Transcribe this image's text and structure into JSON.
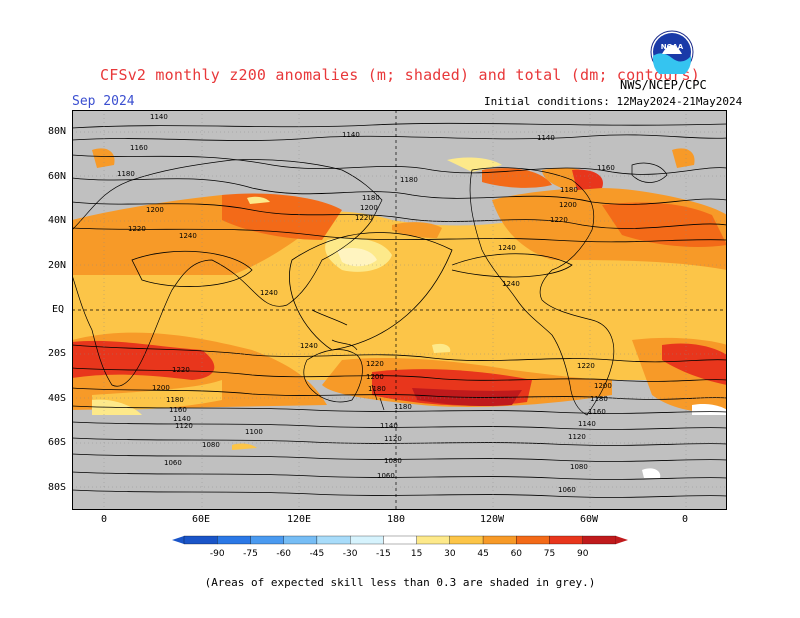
{
  "title": "CFSv2 monthly z200 anomalies (m; shaded) and total (dm; contours)",
  "month_label": "Sep 2024",
  "init_conditions": "Initial conditions: 12May2024-21May2024",
  "agency": "NWS/NCEP/CPC",
  "logo_text": "NOAA",
  "footnote": "(Areas of expected skill less than 0.3 are shaded in grey.)",
  "lat_labels": [
    "80N",
    "60N",
    "40N",
    "20N",
    "EQ",
    "20S",
    "40S",
    "60S",
    "80S"
  ],
  "lon_labels": [
    "0",
    "60E",
    "120E",
    "180",
    "120W",
    "60W",
    "0"
  ],
  "colorbar": {
    "ticks": [
      "-90",
      "-75",
      "-60",
      "-45",
      "-30",
      "-15",
      "15",
      "30",
      "45",
      "60",
      "75",
      "90"
    ],
    "colors": [
      "#1a55c8",
      "#2b78e6",
      "#4a9af0",
      "#76bdf5",
      "#a8dcfa",
      "#d6f3fd",
      "#ffffff",
      "#fde98a",
      "#fcc548",
      "#f79a28",
      "#f36a18",
      "#e8361c",
      "#c01a1c"
    ]
  },
  "contour_labels": {
    "north": [
      "1140",
      "1160",
      "1180",
      "1200",
      "1220",
      "1240"
    ],
    "south": [
      "1240",
      "1220",
      "1200",
      "1180",
      "1160",
      "1140",
      "1120",
      "1100",
      "1080",
      "1060"
    ]
  },
  "colors": {
    "grey_mask": "#c0c0c0",
    "anom_15_30": "#fde98a",
    "anom_30_45": "#fcc548",
    "anom_45_60": "#f79a28",
    "anom_60_75": "#f36a18",
    "anom_75_90": "#e8361c",
    "anom_90plus": "#c01a1c"
  }
}
